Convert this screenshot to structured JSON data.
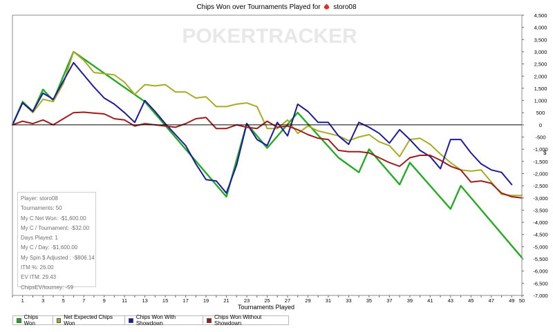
{
  "title_prefix": "Chips Won over Tournaments Played for",
  "player_name": "storo08",
  "watermark": "POKERTRACKER",
  "stats": [
    "Player: storo08",
    "Tournaments: 50",
    "My C Net Won: -$1,600.00",
    "My C / Tournament: -$32.00",
    "Days Played: 1",
    "My C / Day: -$1,600.00",
    "My Spin $ Adjusted : -$806.14",
    "ITM %: 26.00",
    "EV ITM: 29.43",
    "ChipsEV/tourney: -59"
  ],
  "chart_data": {
    "type": "line",
    "title": "Chips Won over Tournaments Played for storo08",
    "xlabel": "Tournaments Played",
    "ylabel": "$",
    "xlim": [
      0,
      50
    ],
    "ylim": [
      -7000,
      4500
    ],
    "x_ticks": [
      1,
      3,
      5,
      7,
      9,
      11,
      13,
      15,
      17,
      19,
      21,
      23,
      25,
      27,
      29,
      31,
      33,
      35,
      37,
      39,
      41,
      43,
      45,
      47,
      49,
      50
    ],
    "y_ticks": [
      -7000,
      -6500,
      -6000,
      -5500,
      -5000,
      -4500,
      -4000,
      -3500,
      -3000,
      -2500,
      -2000,
      -1500,
      -1000,
      -500,
      0,
      500,
      1000,
      1500,
      2000,
      2500,
      3000,
      3500,
      4000,
      4500
    ],
    "y_tick_labels": [
      "-7,000",
      "-6,500",
      "-6,000",
      "-5,500",
      "-5,000",
      "-4,500",
      "-4,000",
      "-3,500",
      "-3,000",
      "-2,500",
      "-2,000",
      "-1,500",
      "-1,000",
      "-500",
      "0",
      "500",
      "1,000",
      "1,500",
      "2,000",
      "2,500",
      "3,000",
      "3,500",
      "4,000",
      "4,500"
    ],
    "legend_position": "bottom-left",
    "series": [
      {
        "name": "Chips Won",
        "color": "#22aa22",
        "points": [
          [
            0,
            0
          ],
          [
            1,
            950
          ],
          [
            2,
            550
          ],
          [
            3,
            1450
          ],
          [
            4,
            1000
          ],
          [
            6,
            3000
          ],
          [
            13,
            950
          ],
          [
            21,
            -2950
          ],
          [
            23,
            50
          ],
          [
            25,
            -950
          ],
          [
            28,
            500
          ],
          [
            32,
            -1350
          ],
          [
            34,
            -1950
          ],
          [
            35,
            -1000
          ],
          [
            38,
            -2450
          ],
          [
            39,
            -1550
          ],
          [
            43,
            -3450
          ],
          [
            44,
            -2500
          ],
          [
            50,
            -5450
          ]
        ]
      },
      {
        "name": "Net Expected Chips Won",
        "color": "#aaaa22",
        "points": [
          [
            0,
            0
          ],
          [
            1,
            900
          ],
          [
            2,
            500
          ],
          [
            3,
            1050
          ],
          [
            4,
            950
          ],
          [
            5,
            1700
          ],
          [
            6,
            3000
          ],
          [
            7,
            2650
          ],
          [
            8,
            2150
          ],
          [
            9,
            2100
          ],
          [
            10,
            2050
          ],
          [
            11,
            1750
          ],
          [
            12,
            1250
          ],
          [
            13,
            1650
          ],
          [
            14,
            1600
          ],
          [
            15,
            1650
          ],
          [
            16,
            1350
          ],
          [
            17,
            1350
          ],
          [
            18,
            1100
          ],
          [
            19,
            1150
          ],
          [
            20,
            750
          ],
          [
            21,
            750
          ],
          [
            22,
            850
          ],
          [
            23,
            900
          ],
          [
            24,
            750
          ],
          [
            25,
            -150
          ],
          [
            26,
            -150
          ],
          [
            27,
            200
          ],
          [
            28,
            -350
          ],
          [
            29,
            -50
          ],
          [
            30,
            -250
          ],
          [
            31,
            -350
          ],
          [
            32,
            -450
          ],
          [
            33,
            -650
          ],
          [
            34,
            -500
          ],
          [
            35,
            -400
          ],
          [
            36,
            -700
          ],
          [
            37,
            -850
          ],
          [
            38,
            -1300
          ],
          [
            39,
            -600
          ],
          [
            40,
            -550
          ],
          [
            41,
            -800
          ],
          [
            42,
            -1200
          ],
          [
            43,
            -1550
          ],
          [
            44,
            -1850
          ],
          [
            45,
            -1900
          ],
          [
            46,
            -1850
          ],
          [
            47,
            -2350
          ],
          [
            48,
            -2850
          ],
          [
            49,
            -2900
          ],
          [
            50,
            -2900
          ]
        ]
      },
      {
        "name": "Chips Won With Showdown",
        "color": "#1a1aa0",
        "points": [
          [
            0,
            0
          ],
          [
            1,
            900
          ],
          [
            2,
            550
          ],
          [
            3,
            1300
          ],
          [
            4,
            1050
          ],
          [
            6,
            2550
          ],
          [
            7,
            2050
          ],
          [
            8,
            1550
          ],
          [
            9,
            1100
          ],
          [
            10,
            850
          ],
          [
            11,
            500
          ],
          [
            12,
            100
          ],
          [
            13,
            1000
          ],
          [
            14,
            550
          ],
          [
            15,
            50
          ],
          [
            16,
            -400
          ],
          [
            17,
            -850
          ],
          [
            18,
            -1600
          ],
          [
            19,
            -2250
          ],
          [
            20,
            -2300
          ],
          [
            21,
            -2800
          ],
          [
            22,
            -1650
          ],
          [
            23,
            50
          ],
          [
            24,
            -600
          ],
          [
            25,
            -850
          ],
          [
            26,
            100
          ],
          [
            27,
            -450
          ],
          [
            28,
            850
          ],
          [
            29,
            550
          ],
          [
            30,
            100
          ],
          [
            31,
            100
          ],
          [
            32,
            -450
          ],
          [
            33,
            -800
          ],
          [
            34,
            100
          ],
          [
            35,
            -100
          ],
          [
            36,
            -350
          ],
          [
            37,
            -750
          ],
          [
            38,
            -200
          ],
          [
            39,
            -600
          ],
          [
            40,
            -1050
          ],
          [
            41,
            -1300
          ],
          [
            42,
            -1800
          ],
          [
            43,
            -600
          ],
          [
            44,
            -600
          ],
          [
            45,
            -1150
          ],
          [
            46,
            -1600
          ],
          [
            47,
            -1850
          ],
          [
            48,
            -1950
          ],
          [
            49,
            -2450
          ]
        ]
      },
      {
        "name": "Chips Won Without Showdown",
        "color": "#a01a1a",
        "points": [
          [
            0,
            0
          ],
          [
            1,
            150
          ],
          [
            2,
            50
          ],
          [
            3,
            200
          ],
          [
            4,
            0
          ],
          [
            5,
            250
          ],
          [
            6,
            500
          ],
          [
            7,
            520
          ],
          [
            8,
            480
          ],
          [
            9,
            450
          ],
          [
            10,
            250
          ],
          [
            11,
            200
          ],
          [
            12,
            -50
          ],
          [
            13,
            50
          ],
          [
            14,
            0
          ],
          [
            15,
            -50
          ],
          [
            16,
            -100
          ],
          [
            17,
            50
          ],
          [
            18,
            250
          ],
          [
            19,
            300
          ],
          [
            20,
            -150
          ],
          [
            21,
            -150
          ],
          [
            22,
            0
          ],
          [
            23,
            -100
          ],
          [
            24,
            -150
          ],
          [
            25,
            150
          ],
          [
            26,
            -100
          ],
          [
            27,
            -50
          ],
          [
            28,
            -200
          ],
          [
            29,
            -400
          ],
          [
            30,
            -550
          ],
          [
            31,
            -600
          ],
          [
            32,
            -1050
          ],
          [
            33,
            -1100
          ],
          [
            34,
            -1100
          ],
          [
            35,
            -1150
          ],
          [
            36,
            -1350
          ],
          [
            37,
            -1550
          ],
          [
            38,
            -1700
          ],
          [
            39,
            -1350
          ],
          [
            40,
            -1250
          ],
          [
            41,
            -1250
          ],
          [
            42,
            -1450
          ],
          [
            43,
            -1700
          ],
          [
            44,
            -1850
          ],
          [
            45,
            -2350
          ],
          [
            46,
            -2300
          ],
          [
            47,
            -2400
          ],
          [
            48,
            -2800
          ],
          [
            49,
            -2950
          ],
          [
            50,
            -3000
          ]
        ]
      }
    ]
  }
}
